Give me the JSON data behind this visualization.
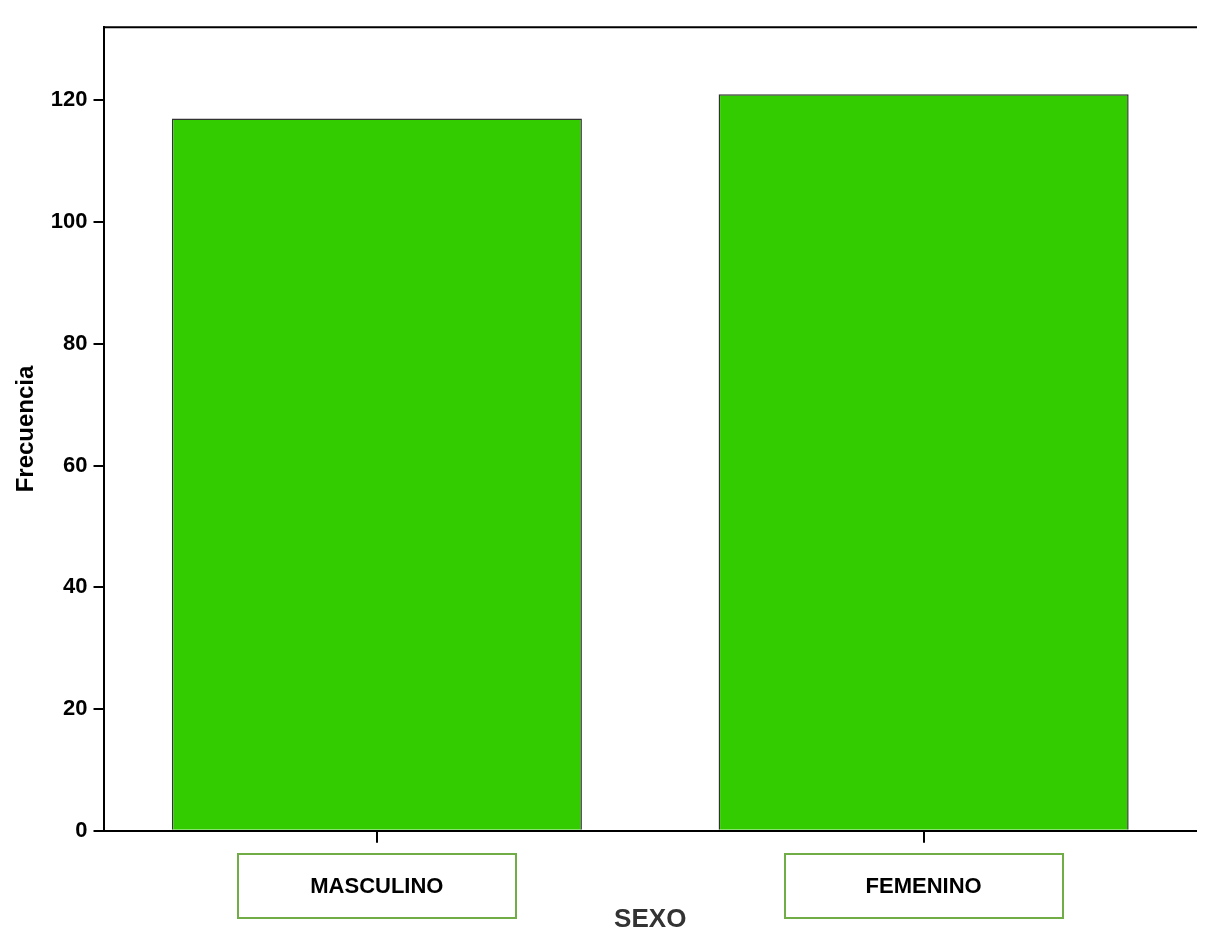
{
  "chart_data": {
    "type": "bar",
    "xlabel": "SEXO",
    "ylabel": "Frecuencia",
    "categories": [
      "MASCULINO",
      "FEMENINO"
    ],
    "values": [
      117,
      121
    ],
    "color": "#33cc00",
    "ylim": [
      0,
      132
    ],
    "yticks": [
      0,
      20,
      40,
      60,
      80,
      100,
      120
    ],
    "grid": false,
    "legend": false
  }
}
